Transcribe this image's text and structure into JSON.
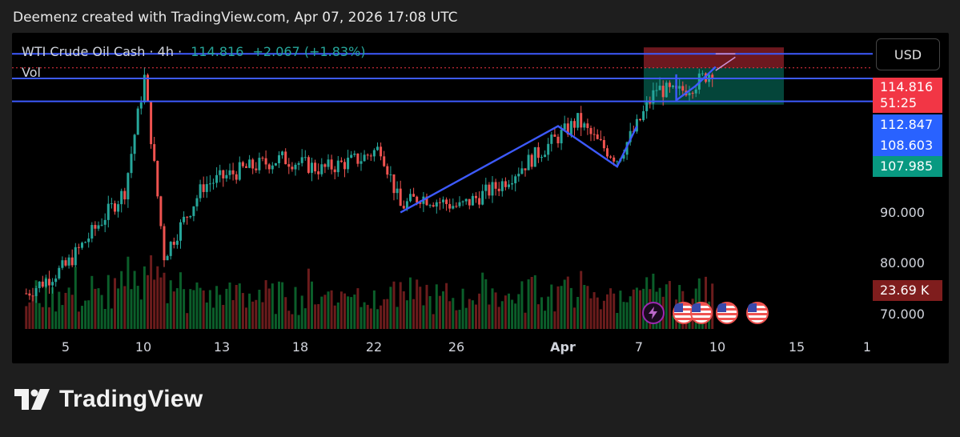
{
  "caption": "Deemenz created with TradingView.com, Apr 07, 2026 17:08 UTC",
  "legend": {
    "symbol": "WTI Crude Oil Cash · 4h ·",
    "last": "114.816",
    "change": "+2.067 (+1.83%)",
    "volume_label": "Vol"
  },
  "currency": "USD",
  "price_tags": [
    {
      "value": "114.816",
      "sub": "51:25",
      "color": "#f23645"
    },
    {
      "value": "112.847",
      "color": "#2962ff"
    },
    {
      "value": "108.603",
      "color": "#2962ff"
    },
    {
      "value": "107.985",
      "color": "#089981"
    },
    {
      "value": "23.69 K",
      "color": "#7f1d1d"
    }
  ],
  "brand": "TradingView",
  "chart_data": {
    "type": "candlestick",
    "title": "WTI Crude Oil Cash · 4h",
    "y_ticks": [
      "90.000",
      "80.000",
      "70.000"
    ],
    "y_tick_values": [
      90,
      80,
      70
    ],
    "ylim": [
      66.4,
      121.3
    ],
    "x_ticks": [
      "5",
      "10",
      "13",
      "18",
      "22",
      "26",
      "Apr",
      "7",
      "10",
      "15",
      "1"
    ],
    "last_price": 114.816,
    "last_volume": "23.69 K",
    "horizontal_levels": [
      117.4,
      112.847,
      108.603
    ],
    "position_box": {
      "entry": 114.816,
      "stop": 118.6,
      "target": 107.985
    },
    "anchor_points": [
      {
        "x": "Mar 3",
        "close": 73
      },
      {
        "x": "Mar 5",
        "close": 78
      },
      {
        "x": "Mar 8",
        "close": 92
      },
      {
        "x": "Mar 9",
        "close": 113
      },
      {
        "x": "Mar 10",
        "close": 80
      },
      {
        "x": "Mar 12",
        "close": 93
      },
      {
        "x": "Mar 14",
        "close": 96
      },
      {
        "x": "Mar 16",
        "close": 98
      },
      {
        "x": "Mar 18",
        "close": 96
      },
      {
        "x": "Mar 20",
        "close": 98
      },
      {
        "x": "Mar 21",
        "close": 100
      },
      {
        "x": "Mar 22",
        "close": 89
      },
      {
        "x": "Mar 23",
        "close": 91
      },
      {
        "x": "Mar 25",
        "close": 89
      },
      {
        "x": "Mar 27",
        "close": 93
      },
      {
        "x": "Mar 29",
        "close": 99
      },
      {
        "x": "Mar 31",
        "close": 105
      },
      {
        "x": "Apr 1",
        "close": 101
      },
      {
        "x": "Apr 2",
        "close": 98
      },
      {
        "x": "Apr 3",
        "close": 104
      },
      {
        "x": "Apr 4",
        "close": 111
      },
      {
        "x": "Apr 5",
        "close": 110
      },
      {
        "x": "Apr 6",
        "close": 112
      },
      {
        "x": "Apr 7",
        "close": 114.816
      }
    ]
  }
}
